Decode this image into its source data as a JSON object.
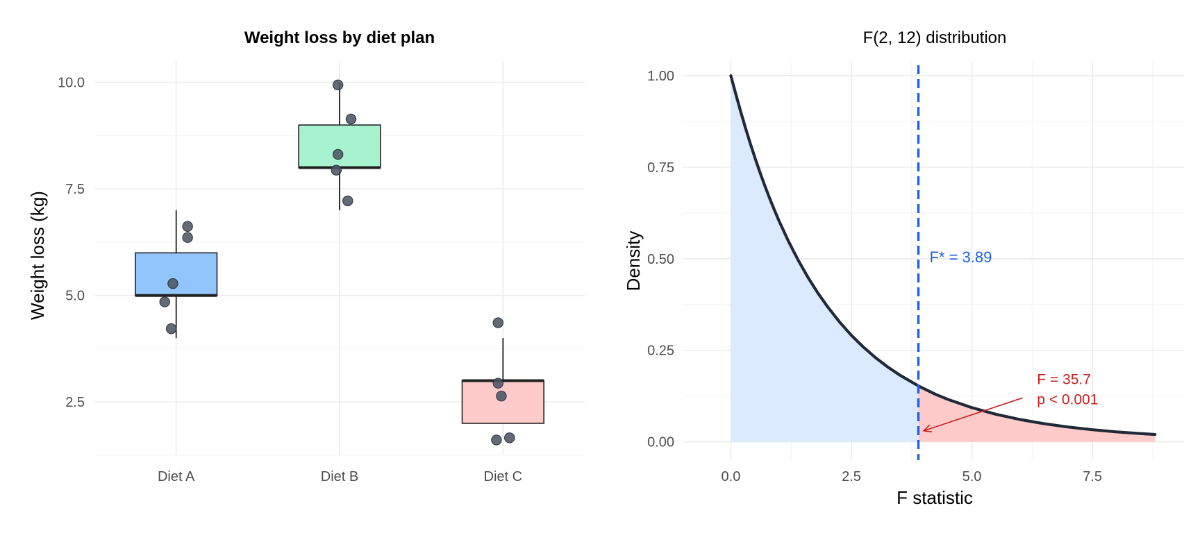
{
  "chart_data": [
    {
      "type": "box",
      "title": "Weight loss by diet plan",
      "xlabel": "",
      "ylabel": "Weight loss (kg)",
      "ylim": [
        1.25,
        10.5
      ],
      "yticks": [
        2.5,
        5.0,
        7.5,
        10.0
      ],
      "ytick_labels": [
        "2.5",
        "5.0",
        "7.5",
        "10.0"
      ],
      "grid": true,
      "legend": "none",
      "categories": [
        "Diet A",
        "Diet B",
        "Diet C"
      ],
      "boxes": [
        {
          "category": "Diet A",
          "min": 4.0,
          "q1": 5.0,
          "median": 5.0,
          "q3": 6.0,
          "max": 7.0,
          "color": "#93c5fd"
        },
        {
          "category": "Diet B",
          "min": 7.0,
          "q1": 8.0,
          "median": 8.0,
          "q3": 9.0,
          "max": 10.0,
          "color": "#a7f3d0"
        },
        {
          "category": "Diet C",
          "min": 2.0,
          "q1": 2.0,
          "median": 3.0,
          "q3": 3.0,
          "max": 4.0,
          "color": "#fecaca"
        }
      ],
      "points": [
        {
          "category": "Diet A",
          "jitter": 0.07,
          "y": 6.62
        },
        {
          "category": "Diet A",
          "jitter": 0.07,
          "y": 6.36
        },
        {
          "category": "Diet A",
          "jitter": -0.02,
          "y": 5.28
        },
        {
          "category": "Diet A",
          "jitter": -0.07,
          "y": 4.85
        },
        {
          "category": "Diet A",
          "jitter": -0.03,
          "y": 4.22
        },
        {
          "category": "Diet B",
          "jitter": -0.01,
          "y": 9.94
        },
        {
          "category": "Diet B",
          "jitter": 0.07,
          "y": 9.14
        },
        {
          "category": "Diet B",
          "jitter": -0.01,
          "y": 8.31
        },
        {
          "category": "Diet B",
          "jitter": -0.02,
          "y": 7.94
        },
        {
          "category": "Diet B",
          "jitter": 0.05,
          "y": 7.22
        },
        {
          "category": "Diet C",
          "jitter": -0.03,
          "y": 4.36
        },
        {
          "category": "Diet C",
          "jitter": -0.03,
          "y": 2.94
        },
        {
          "category": "Diet C",
          "jitter": -0.01,
          "y": 2.64
        },
        {
          "category": "Diet C",
          "jitter": -0.04,
          "y": 1.61
        },
        {
          "category": "Diet C",
          "jitter": 0.04,
          "y": 1.66
        }
      ],
      "point_color": "#4b5563"
    },
    {
      "type": "line",
      "title": "F(2, 12) distribution",
      "xlabel": "F statistic",
      "ylabel": "Density",
      "xlim": [
        -1.0,
        9.4
      ],
      "ylim": [
        -0.05,
        1.04
      ],
      "xticks": [
        0.0,
        2.5,
        5.0,
        7.5
      ],
      "xtick_labels": [
        "0.0",
        "2.5",
        "5.0",
        "7.5"
      ],
      "yticks": [
        0.0,
        0.25,
        0.5,
        0.75,
        1.0
      ],
      "ytick_labels": [
        "0.00",
        "0.25",
        "0.50",
        "0.75",
        "1.00"
      ],
      "grid": true,
      "legend": "none",
      "series": [
        {
          "x": [
            0.0,
            0.05,
            0.1,
            0.2,
            0.3,
            0.4,
            0.5,
            0.6,
            0.7,
            0.8,
            0.9,
            1.0,
            1.2,
            1.4,
            1.6,
            1.8,
            2.0,
            2.25,
            2.5,
            2.75,
            3.0,
            3.25,
            3.5,
            3.89,
            4.25,
            4.5,
            5.0,
            5.5,
            6.0,
            6.5,
            7.0,
            7.5,
            8.0,
            8.5,
            8.8
          ],
          "y": [
            1.0,
            0.9755,
            0.9511,
            0.9039,
            0.8588,
            0.8162,
            0.7758,
            0.7375,
            0.7012,
            0.6668,
            0.6343,
            0.6033,
            0.5465,
            0.4954,
            0.4491,
            0.4075,
            0.3701,
            0.328,
            0.291,
            0.2586,
            0.23,
            0.2048,
            0.1826,
            0.1526,
            0.1295,
            0.116,
            0.0933,
            0.0752,
            0.0609,
            0.0495,
            0.0404,
            0.0331,
            0.0272,
            0.0225,
            0.02
          ],
          "color": "#1f2937"
        }
      ],
      "shaded_regions": [
        {
          "from": 0.0,
          "to": 3.89,
          "color": "#dbeafe"
        },
        {
          "from": 3.89,
          "to": 8.8,
          "color": "#fecaca"
        }
      ],
      "critical_line": {
        "x": 3.89,
        "color": "#1d5fe8"
      },
      "annotations": {
        "critical_label": "F* = 3.89",
        "critical_label_y": 0.49,
        "f_line1": "F = 35.7",
        "f_line2": "p < 0.001",
        "label_pos": [
          6.35,
          0.135
        ],
        "arrow_from": [
          6.05,
          0.12
        ],
        "arrow_to": [
          4.0,
          0.03
        ],
        "color": "#cc1f1f"
      }
    }
  ]
}
